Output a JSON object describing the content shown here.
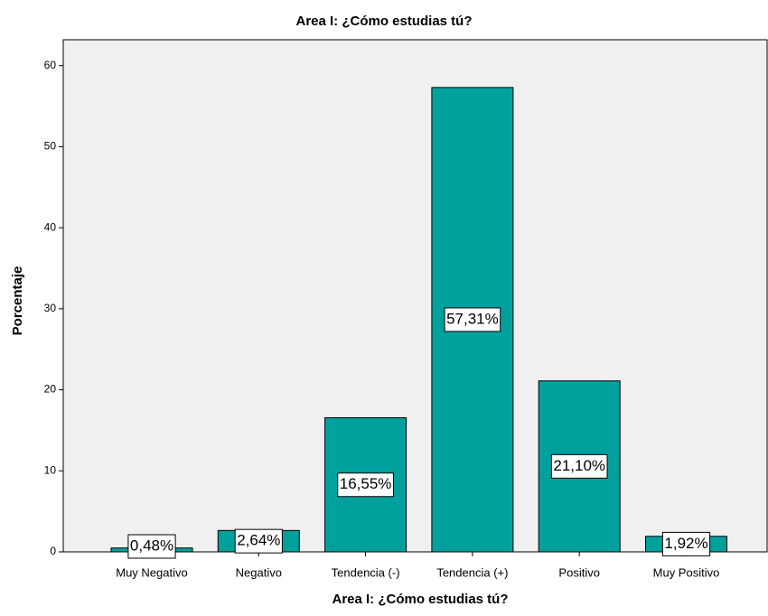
{
  "chart_data": {
    "type": "bar",
    "title": "Area I: ¿Cómo estudias tú?",
    "x_label": "Area I: ¿Cómo estudias tú?",
    "y_label": "Porcentaje",
    "categories": [
      "Muy Negativo",
      "Negativo",
      "Tendencia (-)",
      "Tendencia (+)",
      "Positivo",
      "Muy Positivo"
    ],
    "values": [
      0.48,
      2.64,
      16.55,
      57.31,
      21.1,
      1.92
    ],
    "value_labels": [
      "0,48%",
      "2,64%",
      "16,55%",
      "57,31%",
      "21,10%",
      "1,92%"
    ],
    "color": "#00a09c",
    "ylim": [
      0,
      63.2
    ],
    "yticks": [
      0,
      10,
      20,
      30,
      40,
      50,
      60
    ]
  }
}
